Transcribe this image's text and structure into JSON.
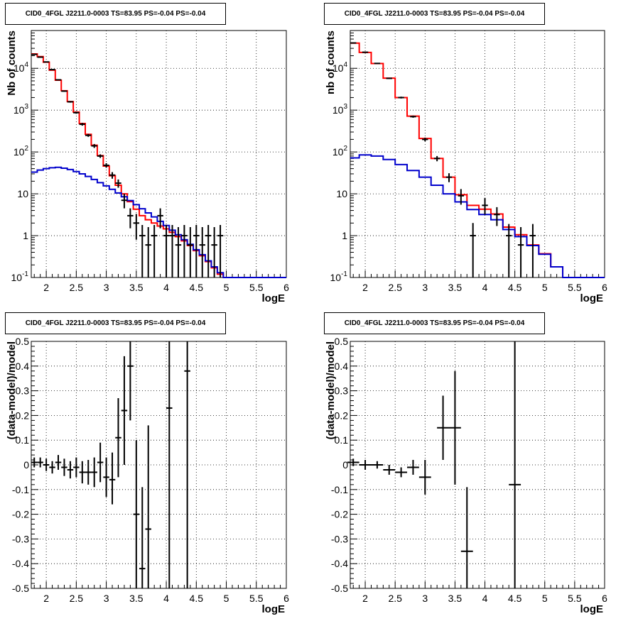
{
  "chart_data": [
    {
      "type": "line",
      "title": "CID0_4FGL J2211.0-0003 TS=83.95 PS=-0.04 PS=-0.04",
      "xlabel": "logE",
      "ylabel": "Nb of counts",
      "xlim": [
        1.75,
        6.0
      ],
      "ylim": [
        0.1,
        80000
      ],
      "log_y": true,
      "grid": true,
      "xticks": [
        "2",
        "2.5",
        "3",
        "3.5",
        "4",
        "4.5",
        "5",
        "5.5",
        "6"
      ],
      "yticks": [
        "10^-1",
        "1",
        "10",
        "10^2",
        "10^3",
        "10^4"
      ],
      "series": [
        {
          "color": "#ff0000",
          "style": "step",
          "edges": [
            1.75,
            1.85,
            1.95,
            2.05,
            2.15,
            2.25,
            2.35,
            2.45,
            2.55,
            2.65,
            2.75,
            2.85,
            2.95,
            3.05,
            3.15,
            3.25,
            3.35,
            3.45,
            3.55,
            3.65,
            3.75,
            3.85,
            3.95,
            4.05,
            4.15,
            4.25,
            4.35,
            4.45,
            4.55,
            4.65,
            4.75,
            4.85,
            4.95,
            5.05,
            5.15,
            5.25,
            5.35,
            5.45,
            5.55,
            5.65,
            5.75,
            5.85,
            5.95,
            6.0
          ],
          "values": [
            22000,
            19000,
            14000,
            9000,
            5200,
            2900,
            1600,
            900,
            480,
            265,
            145,
            82,
            46,
            27,
            16,
            10,
            6.5,
            4.3,
            3.0,
            2.4,
            2.0,
            1.7,
            1.45,
            1.2,
            0.95,
            0.75,
            0.58,
            0.44,
            0.33,
            0.24,
            0.17,
            0.12,
            0.1,
            0.1,
            0.1,
            0.1,
            0.1,
            0.1,
            0.1,
            0.1,
            0.1,
            0.1,
            0.1
          ]
        },
        {
          "color": "#0000cc",
          "style": "step",
          "edges": [
            1.75,
            1.85,
            1.95,
            2.05,
            2.15,
            2.25,
            2.35,
            2.45,
            2.55,
            2.65,
            2.75,
            2.85,
            2.95,
            3.05,
            3.15,
            3.25,
            3.35,
            3.45,
            3.55,
            3.65,
            3.75,
            3.85,
            3.95,
            4.05,
            4.15,
            4.25,
            4.35,
            4.45,
            4.55,
            4.65,
            4.75,
            4.85,
            4.95,
            5.05,
            5.15,
            5.25,
            5.35,
            5.45,
            5.55,
            5.65,
            5.75,
            5.85,
            5.95,
            6.0
          ],
          "values": [
            33,
            37,
            40,
            42,
            43,
            41,
            38,
            34,
            30,
            26,
            22,
            18.5,
            15.5,
            12.8,
            10.5,
            8.5,
            6.9,
            5.5,
            4.4,
            3.5,
            2.8,
            2.2,
            1.75,
            1.35,
            1.05,
            0.8,
            0.62,
            0.46,
            0.35,
            0.25,
            0.18,
            0.13,
            0.1,
            0.1,
            0.1,
            0.1,
            0.1,
            0.1,
            0.1,
            0.1,
            0.1,
            0.1,
            0.1
          ]
        }
      ],
      "data_points": {
        "color": "#000000",
        "x": [
          1.8,
          1.9,
          2.0,
          2.1,
          2.2,
          2.3,
          2.4,
          2.5,
          2.6,
          2.7,
          2.8,
          2.9,
          3.0,
          3.1,
          3.2,
          3.3,
          3.4,
          3.5,
          3.6,
          3.7,
          3.8,
          3.9,
          4.0,
          4.1,
          4.2,
          4.3,
          4.4,
          4.5,
          4.6,
          4.7,
          4.8,
          4.9
        ],
        "y": [
          21500,
          18500,
          14200,
          9300,
          5300,
          2850,
          1580,
          870,
          460,
          250,
          140,
          80,
          48,
          28,
          18,
          7,
          3,
          2,
          1,
          0.6,
          1,
          3,
          1,
          1,
          0.6,
          1,
          0.6,
          1,
          0.6,
          1,
          0.6,
          1
        ],
        "ylo": [
          21300,
          18300,
          14000,
          9100,
          5150,
          2750,
          1510,
          820,
          425,
          230,
          125,
          72,
          42,
          23,
          14,
          4.5,
          1.5,
          0.8,
          0.1,
          0.1,
          0.1,
          1.5,
          0.1,
          0.1,
          0.1,
          0.1,
          0.1,
          0.1,
          0.1,
          0.1,
          0.1,
          0.1
        ],
        "yhi": [
          21700,
          18700,
          14400,
          9500,
          5450,
          2950,
          1650,
          920,
          495,
          270,
          155,
          88,
          54,
          33,
          22,
          10,
          4.5,
          3.3,
          1.8,
          1.6,
          1.8,
          4.5,
          1.8,
          1.8,
          1.6,
          1.8,
          1.6,
          1.8,
          1.6,
          1.8,
          1.6,
          1.8
        ]
      }
    },
    {
      "type": "line",
      "title": "CID0_4FGL J2211.0-0003 TS=83.95 PS=-0.04 PS=-0.04",
      "xlabel": "logE",
      "ylabel": "nb of counts",
      "xlim": [
        1.75,
        6.0
      ],
      "ylim": [
        0.1,
        80000
      ],
      "log_y": true,
      "grid": true,
      "xticks": [
        "2",
        "2.5",
        "3",
        "3.5",
        "4",
        "4.5",
        "5",
        "5.5",
        "6"
      ],
      "yticks": [
        "10^-1",
        "1",
        "10",
        "10^2",
        "10^3",
        "10^4"
      ],
      "series": [
        {
          "color": "#ff0000",
          "style": "step",
          "edges": [
            1.75,
            1.9,
            2.1,
            2.3,
            2.5,
            2.7,
            2.9,
            3.1,
            3.3,
            3.5,
            3.7,
            3.9,
            4.1,
            4.3,
            4.5,
            4.7,
            4.9,
            5.1,
            5.3,
            5.5,
            5.7,
            5.9,
            6.0
          ],
          "values": [
            40000,
            24000,
            13000,
            5800,
            2000,
            720,
            210,
            70,
            25,
            9.5,
            5.3,
            4.3,
            3.3,
            1.6,
            1.05,
            0.6,
            0.37,
            0.18,
            0.1,
            0.1,
            0.1,
            0.1
          ]
        },
        {
          "color": "#0000cc",
          "style": "step",
          "edges": [
            1.75,
            1.9,
            2.1,
            2.3,
            2.5,
            2.7,
            2.9,
            3.1,
            3.3,
            3.5,
            3.7,
            3.9,
            4.1,
            4.3,
            4.5,
            4.7,
            4.9,
            5.1,
            5.3,
            5.5,
            5.7,
            5.9,
            6.0
          ],
          "values": [
            72,
            85,
            80,
            66,
            50,
            36,
            25,
            16,
            10,
            6.4,
            4.2,
            3.2,
            2.4,
            1.4,
            0.95,
            0.58,
            0.36,
            0.18,
            0.1,
            0.1,
            0.1,
            0.1
          ]
        }
      ],
      "data_points": {
        "color": "#000000",
        "x": [
          1.8,
          2.0,
          2.2,
          2.4,
          2.6,
          2.8,
          3.0,
          3.2,
          3.4,
          3.6,
          3.8,
          4.0,
          4.2,
          4.4,
          4.6,
          4.8
        ],
        "y": [
          40300,
          24200,
          13100,
          5750,
          2000,
          700,
          200,
          70,
          25,
          9,
          1,
          5.3,
          3.2,
          1,
          0.6,
          1
        ],
        "ylo": [
          40000,
          24000,
          12900,
          5600,
          1900,
          660,
          180,
          60,
          19,
          5.5,
          0.1,
          3.2,
          1.7,
          0.1,
          0.1,
          0.1
        ],
        "yhi": [
          40600,
          24400,
          13300,
          5900,
          2100,
          740,
          220,
          80,
          31,
          13,
          2,
          8,
          4.8,
          1.9,
          1.6,
          1.9
        ]
      }
    },
    {
      "type": "scatter",
      "title": "CID0_4FGL J2211.0-0003 TS=83.95 PS=-0.04 PS=-0.04",
      "xlabel": "logE",
      "ylabel": "(data-model)/model",
      "xlim": [
        1.75,
        6.0
      ],
      "ylim": [
        -0.5,
        0.5
      ],
      "grid": true,
      "xticks": [
        "2",
        "2.5",
        "3",
        "3.5",
        "4",
        "4.5",
        "5",
        "5.5",
        "6"
      ],
      "yticks": [
        "-0.5",
        "-0.4",
        "-0.3",
        "-0.2",
        "-0.1",
        "0",
        "0.1",
        "0.2",
        "0.3",
        "0.4",
        "0.5"
      ],
      "data_points": {
        "color": "#000000",
        "x": [
          1.8,
          1.9,
          2.0,
          2.1,
          2.2,
          2.3,
          2.4,
          2.5,
          2.6,
          2.7,
          2.8,
          2.9,
          3.0,
          3.1,
          3.2,
          3.3,
          3.4,
          3.5,
          3.6,
          3.7,
          4.05,
          4.35
        ],
        "y": [
          0.01,
          0.01,
          0.0,
          -0.01,
          0.01,
          -0.01,
          -0.02,
          -0.01,
          -0.03,
          -0.03,
          -0.03,
          0.01,
          -0.05,
          -0.06,
          0.11,
          0.22,
          0.4,
          -0.2,
          -0.42,
          -0.26,
          0.23,
          0.38
        ],
        "ylo": [
          -0.01,
          -0.01,
          -0.025,
          -0.035,
          -0.02,
          -0.045,
          -0.055,
          -0.05,
          -0.075,
          -0.08,
          -0.09,
          -0.07,
          -0.13,
          -0.16,
          -0.05,
          0.0,
          0.18,
          -0.5,
          -0.5,
          -0.5,
          -0.5,
          -0.5
        ],
        "yhi": [
          0.03,
          0.03,
          0.025,
          0.015,
          0.04,
          0.025,
          0.015,
          0.03,
          0.015,
          0.02,
          0.03,
          0.09,
          0.03,
          0.05,
          0.27,
          0.44,
          0.5,
          0.1,
          -0.09,
          0.16,
          0.5,
          0.5
        ],
        "xerr": 0.05
      }
    },
    {
      "type": "scatter",
      "title": "CID0_4FGL J2211.0-0003 TS=83.95 PS=-0.04 PS=-0.04",
      "xlabel": "logE",
      "ylabel": "(data-model)/model",
      "xlim": [
        1.75,
        6.0
      ],
      "ylim": [
        -0.5,
        0.5
      ],
      "grid": true,
      "xticks": [
        "2",
        "2.5",
        "3",
        "3.5",
        "4",
        "4.5",
        "5",
        "5.5",
        "6"
      ],
      "yticks": [
        "-0.5",
        "-0.4",
        "-0.3",
        "-0.2",
        "-0.1",
        "0",
        "0.1",
        "0.2",
        "0.3",
        "0.4",
        "0.5"
      ],
      "data_points": {
        "color": "#000000",
        "x": [
          1.8,
          2.0,
          2.2,
          2.4,
          2.6,
          2.8,
          3.0,
          3.3,
          3.5,
          3.7,
          4.5
        ],
        "y": [
          0.01,
          0.0,
          0.0,
          -0.02,
          -0.03,
          -0.01,
          -0.05,
          0.15,
          0.15,
          -0.35,
          -0.08
        ],
        "ylo": [
          -0.005,
          -0.02,
          -0.015,
          -0.04,
          -0.05,
          -0.04,
          -0.12,
          0.02,
          -0.08,
          -0.5,
          -0.5
        ],
        "yhi": [
          0.025,
          0.02,
          0.015,
          0.0,
          -0.01,
          0.02,
          0.02,
          0.28,
          0.38,
          -0.09,
          0.5
        ],
        "xerr": 0.1
      }
    }
  ]
}
